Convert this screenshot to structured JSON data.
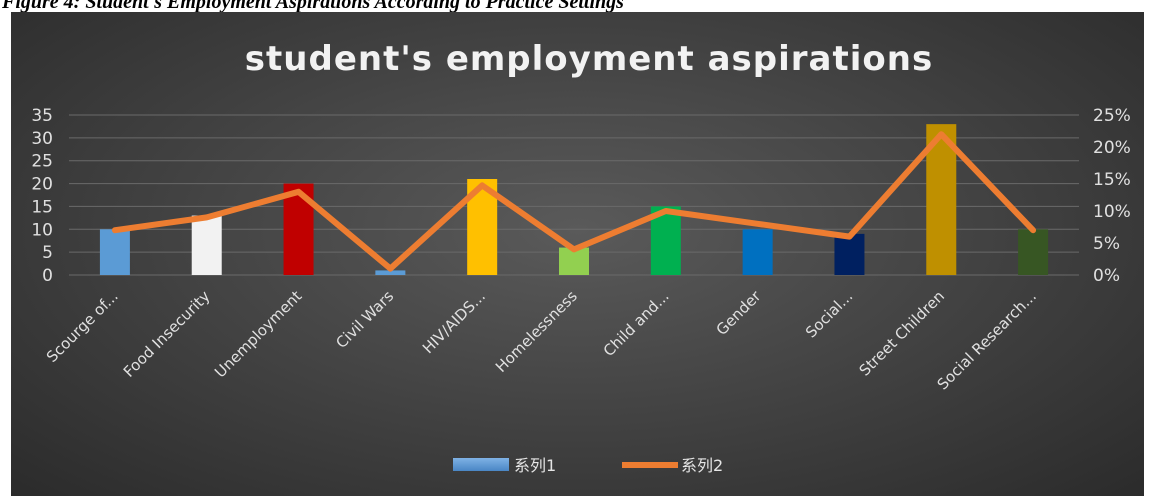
{
  "caption": "Figure 4: Student's Employment Aspirations According to Practice Settings",
  "chart_data": {
    "type": "bar+line",
    "title": "student's employment aspirations",
    "categories": [
      "Scourge of...",
      "Food Insecurity",
      "Unemployment",
      "Civil Wars",
      "HIV/AIDS...",
      "Homelessness",
      "Child and...",
      "Gender",
      "Social...",
      "Street Children",
      "Social Research..."
    ],
    "series": [
      {
        "name": "系列1",
        "type": "bar",
        "axis": "left",
        "values": [
          10,
          13,
          20,
          1,
          21,
          6,
          15,
          10,
          9,
          33,
          10
        ],
        "colors": [
          "#5b9bd5",
          "#f2f2f2",
          "#c00000",
          "#5b9bd5",
          "#ffc000",
          "#92d050",
          "#00b050",
          "#0070c0",
          "#002060",
          "#bf9000",
          "#375623"
        ]
      },
      {
        "name": "系列2",
        "type": "line",
        "axis": "right",
        "values": [
          0.07,
          0.09,
          0.13,
          0.01,
          0.14,
          0.04,
          0.1,
          0.08,
          0.06,
          0.22,
          0.07
        ],
        "color": "#ed7d31"
      }
    ],
    "y_left": {
      "min": 0,
      "max": 35,
      "ticks": [
        "0",
        "5",
        "10",
        "15",
        "20",
        "25",
        "30",
        "35"
      ]
    },
    "y_right": {
      "min": 0,
      "max": 0.25,
      "ticks": [
        "0%",
        "5%",
        "10%",
        "15%",
        "20%",
        "25%"
      ]
    },
    "grid": true,
    "legend": "bottom"
  }
}
